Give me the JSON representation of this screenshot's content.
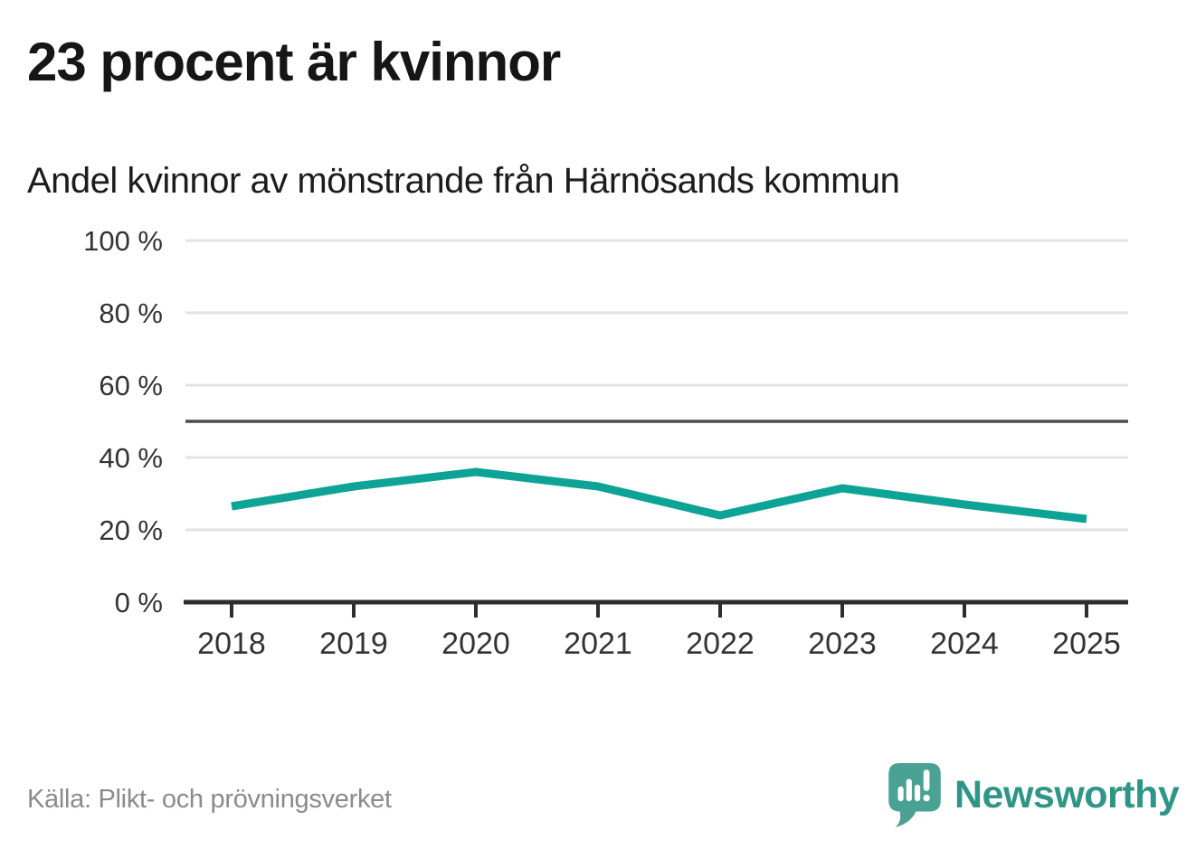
{
  "header": {
    "title": "23 procent är kvinnor",
    "subtitle": "Andel kvinnor av mönstrande från Härnösands kommun"
  },
  "chart_data": {
    "type": "line",
    "title": "23 procent är kvinnor",
    "subtitle": "Andel kvinnor av mönstrande från Härnösands kommun",
    "x": [
      "2018",
      "2019",
      "2020",
      "2021",
      "2022",
      "2023",
      "2024",
      "2025"
    ],
    "series": [
      {
        "name": "Andel kvinnor av mönstrande",
        "values": [
          26.5,
          32,
          36,
          32,
          24,
          31.5,
          27,
          23
        ],
        "color": "#0da396"
      }
    ],
    "ylim": [
      0,
      100
    ],
    "y_ticks": [
      0,
      20,
      40,
      60,
      80,
      100
    ],
    "y_tick_suffix": " %",
    "reference_line": {
      "value": 50,
      "color": "#4d4d4d"
    },
    "grid": true,
    "legend": "none"
  },
  "footer": {
    "source": "Källa: Plikt- och prövningsverket",
    "brand": "Newsworthy"
  },
  "colors": {
    "line": "#0da396",
    "grid": "#e3e3e3",
    "axis": "#2e2e2e",
    "tick_label": "#333333",
    "title_text": "#161616",
    "source_text": "#8b8b8b",
    "brand_icon": "#4aa294",
    "brand_text": "#2f9687"
  }
}
